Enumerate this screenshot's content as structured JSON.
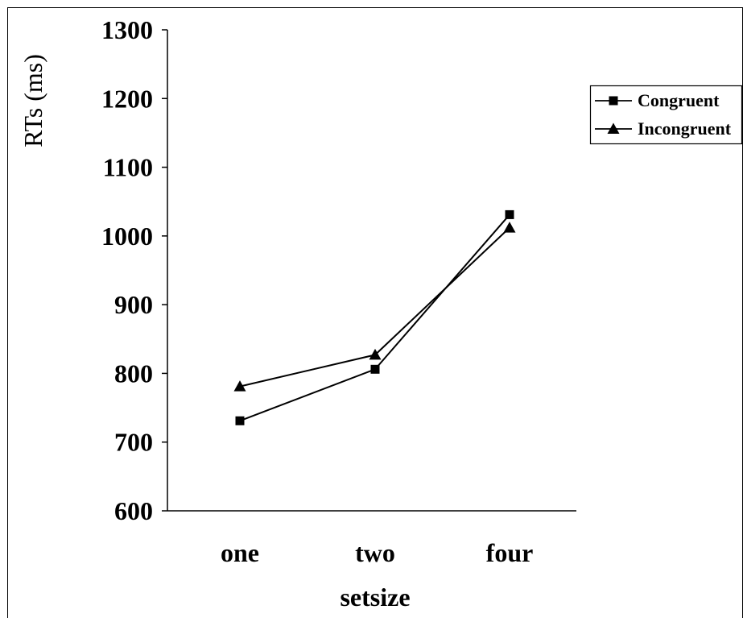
{
  "chart_data": {
    "type": "line",
    "categories": [
      "one",
      "two",
      "four"
    ],
    "series": [
      {
        "name": "Congruent",
        "values": [
          731,
          806,
          1031
        ],
        "marker": "square"
      },
      {
        "name": "Incongruent",
        "values": [
          781,
          827,
          1012
        ],
        "marker": "triangle"
      }
    ],
    "xlabel": "setsize",
    "ylabel": "RTs (ms)",
    "ylim": [
      600,
      1300
    ],
    "yticks": [
      600,
      700,
      800,
      900,
      1000,
      1100,
      1200,
      1300
    ],
    "grid": false,
    "legend_position": "right"
  },
  "colors": {
    "line": "#000000",
    "background": "#ffffff"
  }
}
